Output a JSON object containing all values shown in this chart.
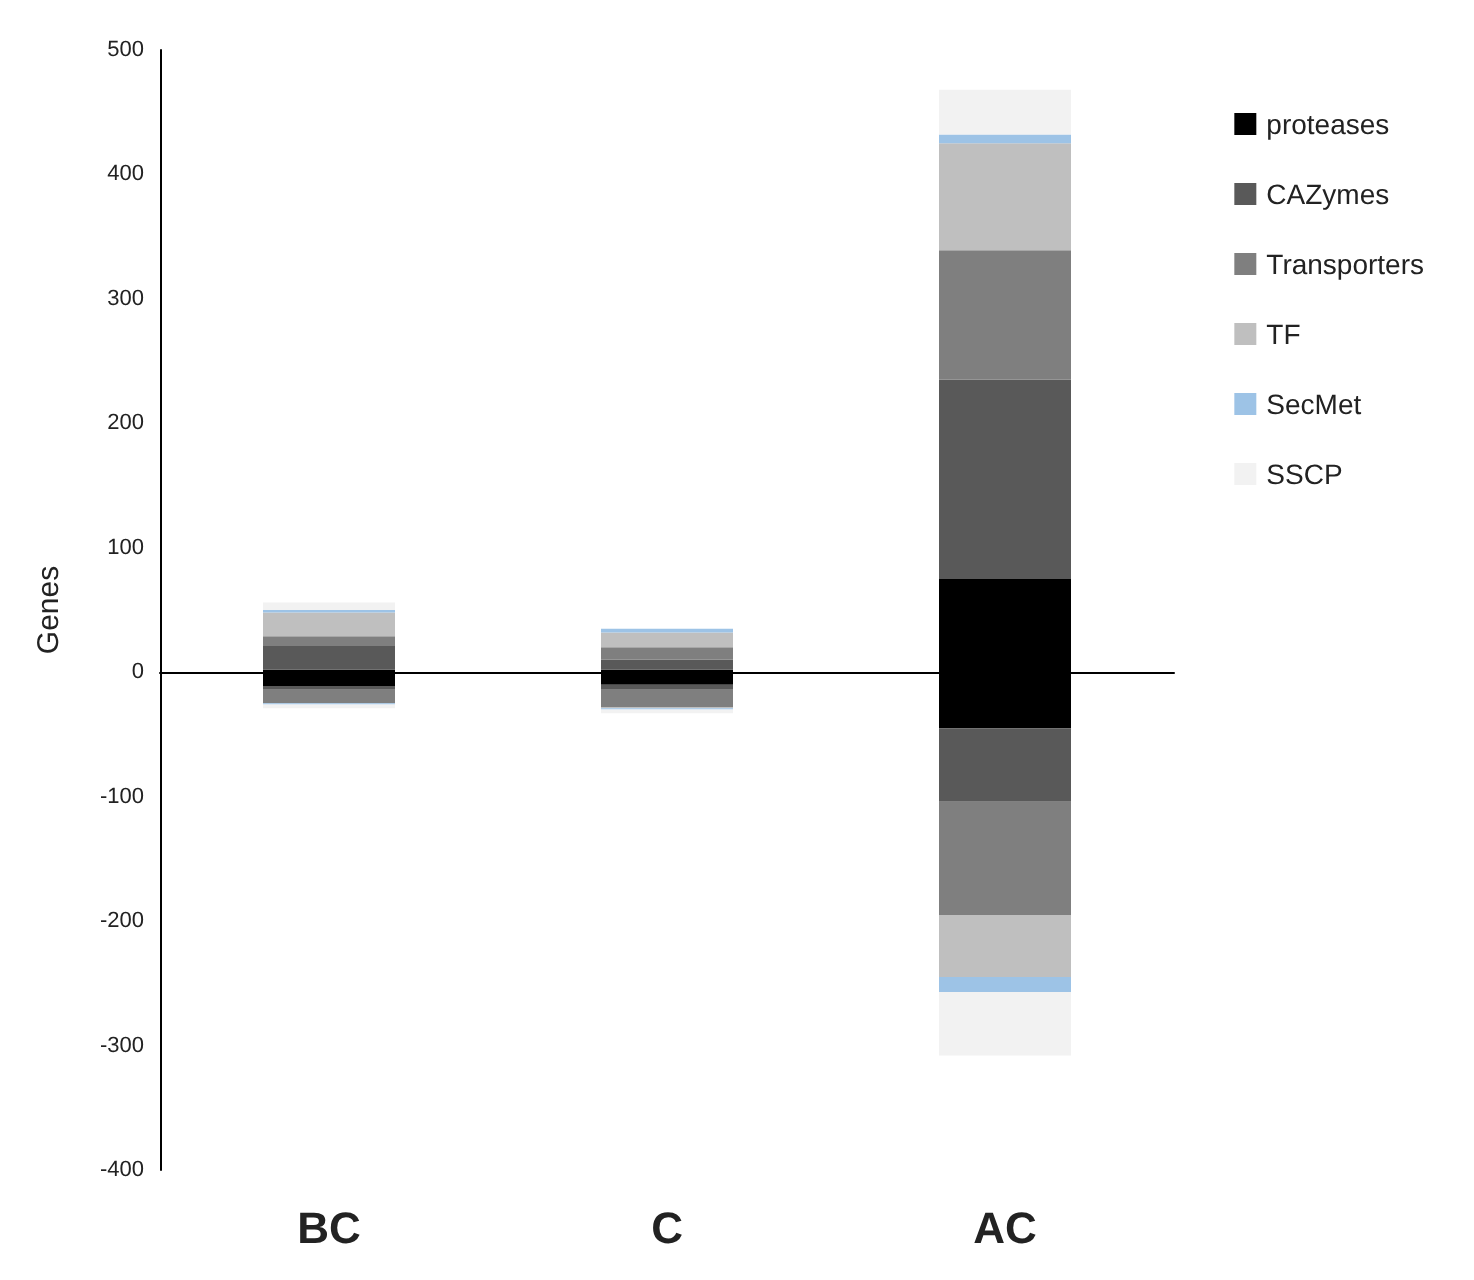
{
  "chart_data": {
    "type": "bar",
    "ylabel": "Genes",
    "categories": [
      "BC",
      "C",
      "AC"
    ],
    "stacked": true,
    "legend": "right",
    "ylim": [
      -400,
      500
    ],
    "yticks": [
      -400,
      -300,
      -200,
      -100,
      0,
      100,
      200,
      300,
      400,
      500
    ],
    "series": [
      {
        "name": "proteases",
        "color": "#000000",
        "values": [
          2,
          2,
          75
        ]
      },
      {
        "name": "CAZymes",
        "color": "#595959",
        "values": [
          19,
          8,
          160
        ]
      },
      {
        "name": "Transporters",
        "color": "#7f7f7f",
        "values": [
          8,
          10,
          104
        ]
      },
      {
        "name": "TF",
        "color": "#bfbfbf",
        "values": [
          19,
          12,
          86
        ]
      },
      {
        "name": "SecMet",
        "color": "#9dc3e6",
        "values": [
          2,
          3,
          7
        ]
      },
      {
        "name": "SSCP",
        "color": "#f2f2f2",
        "values": [
          6,
          null,
          36
        ]
      },
      {
        "color": "#000000",
        "values": [
          -11,
          -10,
          -45
        ]
      },
      {
        "color": "#595959",
        "values": [
          -3,
          -4,
          -59
        ]
      },
      {
        "color": "#7f7f7f",
        "values": [
          -11,
          -14,
          -91
        ]
      },
      {
        "color": "#bfbfbf",
        "values": [
          null,
          -1,
          -50
        ]
      },
      {
        "color": "#9dc3e6",
        "values": [
          -1,
          -1,
          -12
        ]
      },
      {
        "color": "#f2f2f2",
        "values": [
          -3,
          -3,
          -51
        ]
      }
    ]
  }
}
